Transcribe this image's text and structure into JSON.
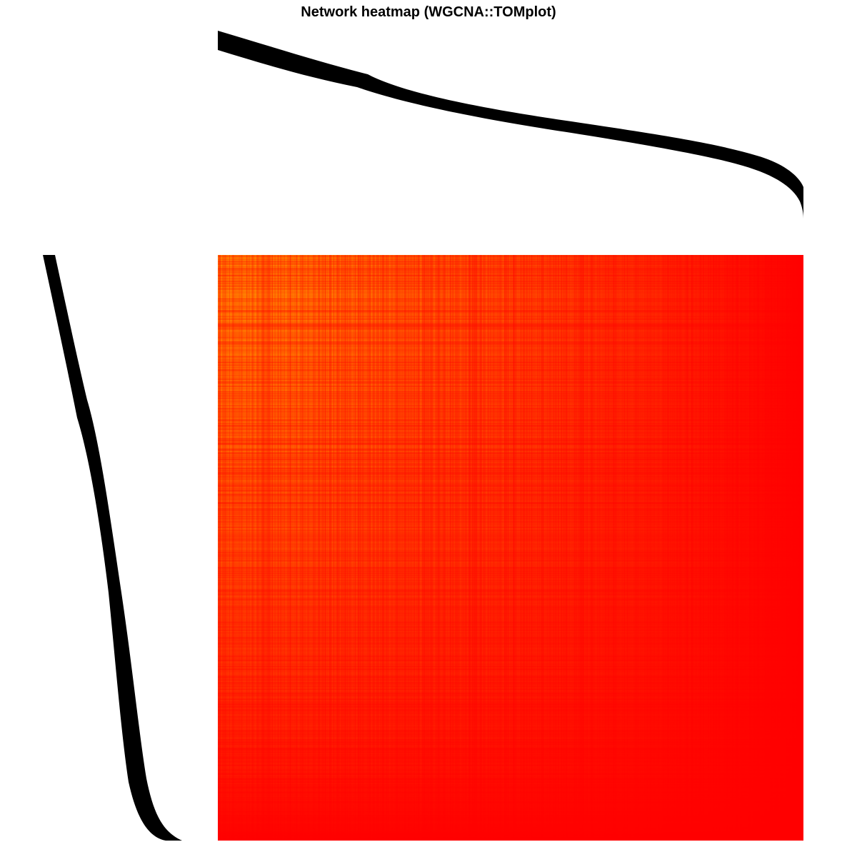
{
  "chart_data": {
    "type": "heatmap",
    "title": "Network heatmap (WGCNA::TOMplot)",
    "xlabel": "",
    "ylabel": "",
    "grid": false,
    "legend": "none",
    "colormap": {
      "low_color": "#ff0000",
      "high_color": "#ff9900",
      "background": "#ffffff"
    },
    "dendrogram_color": "#000000",
    "dendrograms": [
      "top",
      "left"
    ],
    "matrix_description_values": {
      "max_intensity_top_left": 0.85,
      "min_intensity_bottom_right": 0.0
    }
  }
}
